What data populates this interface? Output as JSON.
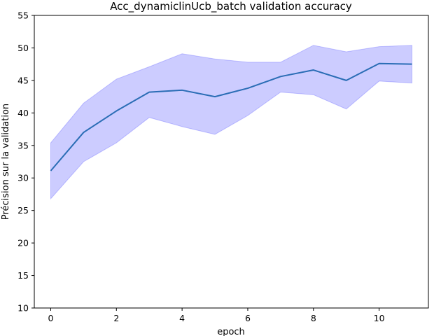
{
  "chart_data": {
    "type": "line",
    "title": "Acc_dynamiclinUcb_batch validation accuracy",
    "xlabel": "epoch",
    "ylabel": "Précision sur la validation",
    "xlim": [
      -0.5,
      11.5
    ],
    "ylim": [
      10,
      55
    ],
    "xticks": [
      0,
      2,
      4,
      6,
      8,
      10
    ],
    "yticks": [
      10,
      15,
      20,
      25,
      30,
      35,
      40,
      45,
      50,
      55
    ],
    "grid": false,
    "series": [
      {
        "x": [
          0,
          1,
          2,
          3,
          4,
          5,
          6,
          7,
          8,
          9,
          10,
          11
        ],
        "mean": [
          31.1,
          37.0,
          40.3,
          43.2,
          43.5,
          42.5,
          43.8,
          45.6,
          46.6,
          45.0,
          47.6,
          47.5
        ],
        "upper": [
          35.4,
          41.5,
          45.2,
          47.1,
          49.1,
          48.3,
          47.8,
          47.8,
          50.4,
          49.4,
          50.2,
          50.4
        ],
        "lower": [
          26.8,
          32.5,
          35.4,
          39.3,
          37.9,
          36.7,
          39.6,
          43.2,
          42.8,
          40.6,
          44.9,
          44.6
        ],
        "line_color": "#2a6db5",
        "band_color": "#0000ff"
      }
    ]
  }
}
